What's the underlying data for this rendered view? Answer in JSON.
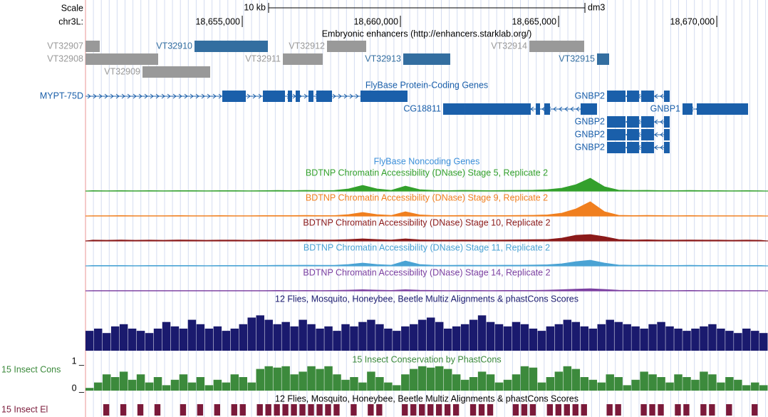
{
  "browser": {
    "scale_label": "Scale",
    "chrom_label": "chr3L:",
    "assembly": "dm3",
    "scale_bar": {
      "label": "10 kb",
      "length": 10000
    },
    "xlim": [
      18650045,
      18671619
    ],
    "xticks": [
      {
        "value": 18655000,
        "label": "18,655,000"
      },
      {
        "value": 18660000,
        "label": "18,660,000"
      },
      {
        "value": 18665000,
        "label": "18,665,000"
      },
      {
        "value": 18670000,
        "label": "18,670,000"
      }
    ]
  },
  "enhancers": {
    "title": "Embryonic enhancers (http://enhancers.starklab.org/)",
    "items": [
      {
        "name": "VT32907",
        "start": 18650045,
        "end": 18650495,
        "color": "#999999"
      },
      {
        "name": "VT32908",
        "start": 18650045,
        "end": 18652342,
        "color": "#999999"
      },
      {
        "name": "VT32909",
        "start": 18651847,
        "end": 18653986,
        "color": "#999999"
      },
      {
        "name": "VT32910",
        "start": 18653491,
        "end": 18655810,
        "color": "#336ea0"
      },
      {
        "name": "VT32911",
        "start": 18656283,
        "end": 18657544,
        "color": "#999999"
      },
      {
        "name": "VT32912",
        "start": 18657679,
        "end": 18658918,
        "color": "#999999"
      },
      {
        "name": "VT32913",
        "start": 18660089,
        "end": 18661575,
        "color": "#336ea0"
      },
      {
        "name": "VT32914",
        "start": 18664075,
        "end": 18665809,
        "color": "#999999"
      },
      {
        "name": "VT32915",
        "start": 18666214,
        "end": 18666597,
        "color": "#336ea0"
      }
    ]
  },
  "genes": {
    "title": "FlyBase Protein-Coding Genes",
    "color": "#1a5faa",
    "items": [
      {
        "name": "MYPT-75D",
        "start": 18650045,
        "end": 18660224,
        "strand": "+",
        "exons": [
          [
            18654369,
            18655112
          ],
          [
            18655652,
            18656351
          ],
          [
            18656441,
            18656576
          ],
          [
            18656688,
            18656824
          ],
          [
            18657094,
            18657251
          ],
          [
            18657341,
            18657837
          ],
          [
            18658738,
            18659323
          ],
          [
            18659323,
            18660224
          ]
        ]
      },
      {
        "name": "CG18811",
        "start": 18661350,
        "end": 18666214,
        "strand": "-",
        "exons": [
          [
            18661350,
            18662026
          ],
          [
            18662026,
            18664120
          ],
          [
            18664278,
            18664413
          ],
          [
            18664548,
            18664728
          ],
          [
            18665696,
            18666214
          ]
        ]
      },
      {
        "name": "GNBP2",
        "start": 18666530,
        "end": 18668511,
        "strand": "-",
        "exons": [
          [
            18666530,
            18667115
          ],
          [
            18667160,
            18667543
          ],
          [
            18667611,
            18668016
          ],
          [
            18668331,
            18668511
          ]
        ]
      },
      {
        "name": "GNBP1",
        "start": 18668917,
        "end": 18670989,
        "strand": "-",
        "exons": [
          [
            18668917,
            18669232
          ],
          [
            18669367,
            18670763
          ],
          [
            18670763,
            18670989
          ]
        ]
      },
      {
        "name": "GNBP2",
        "start": 18666530,
        "end": 18668511,
        "strand": "-",
        "exons": [
          [
            18666530,
            18667115
          ],
          [
            18667160,
            18667543
          ],
          [
            18667611,
            18668016
          ],
          [
            18668331,
            18668511
          ]
        ]
      },
      {
        "name": "GNBP2",
        "start": 18666530,
        "end": 18668511,
        "strand": "-",
        "exons": [
          [
            18666530,
            18667115
          ],
          [
            18667160,
            18667543
          ],
          [
            18667611,
            18668016
          ],
          [
            18668331,
            18668511
          ]
        ]
      },
      {
        "name": "GNBP2",
        "start": 18666530,
        "end": 18668511,
        "strand": "-",
        "exons": [
          [
            18666530,
            18667115
          ],
          [
            18667160,
            18667543
          ],
          [
            18667611,
            18668016
          ],
          [
            18668331,
            18668511
          ]
        ]
      }
    ]
  },
  "noncoding": {
    "title": "FlyBase Noncoding Genes"
  },
  "dnase": {
    "ylim": [
      0,
      10
    ],
    "tracks": [
      {
        "name": "BDTNP Chromatin Accessibility (DNase) Stage 5, Replicate 2",
        "color": "#33a02c",
        "values": [
          0.3,
          0.2,
          0.3,
          0.2,
          0.3,
          0.2,
          0.3,
          0.3,
          0.2,
          0.3,
          0.3,
          0.2,
          0.3,
          0.4,
          0.3,
          0.5,
          0.3,
          0.4,
          1.5,
          4,
          1.5,
          0.5,
          3.5,
          1,
          0.4,
          0.3,
          0.5,
          0.4,
          0.3,
          0.4,
          0.5,
          0.6,
          1,
          2,
          4.5,
          9,
          3,
          0.6,
          0.4,
          0.5,
          0.3,
          0.3,
          0.4,
          0.3,
          0.3,
          0.2,
          0.3,
          0.2
        ]
      },
      {
        "name": "BDTNP Chromatin Accessibility (DNase) Stage 9, Replicate 2",
        "color": "#f07f1f",
        "values": [
          0.2,
          0.2,
          0.3,
          0.2,
          0.2,
          0.2,
          0.3,
          0.2,
          0.2,
          0.3,
          0.2,
          0.2,
          0.3,
          0.3,
          0.3,
          0.4,
          0.3,
          0.3,
          1,
          2.5,
          1,
          0.4,
          3,
          0.8,
          0.3,
          0.3,
          0.4,
          0.3,
          0.3,
          0.3,
          0.4,
          0.5,
          0.8,
          2,
          5,
          10,
          3,
          0.5,
          0.3,
          0.4,
          0.3,
          0.2,
          0.3,
          0.2,
          0.2,
          0.2,
          0.2,
          0.2
        ]
      },
      {
        "name": "BDTNP Chromatin Accessibility (DNase) Stage 10, Replicate 2",
        "color": "#8b1a1a",
        "values": [
          0.6,
          0.5,
          0.7,
          0.5,
          0.6,
          0.5,
          0.7,
          0.6,
          0.5,
          0.6,
          0.6,
          0.5,
          0.7,
          0.6,
          0.6,
          0.8,
          0.6,
          0.7,
          1,
          1.5,
          1,
          0.7,
          1.5,
          0.8,
          0.6,
          0.6,
          0.7,
          0.6,
          0.6,
          0.7,
          0.8,
          0.9,
          1,
          2,
          4,
          4.5,
          3,
          1,
          0.7,
          0.8,
          0.6,
          0.6,
          0.7,
          0.6,
          0.6,
          0.5,
          0.6,
          0.5
        ]
      },
      {
        "name": "BDTNP Chromatin Accessibility (DNase) Stage 11, Replicate 2",
        "color": "#4aa3d4",
        "values": [
          0.3,
          0.3,
          0.3,
          0.2,
          0.3,
          0.3,
          0.3,
          0.3,
          0.2,
          0.3,
          0.3,
          0.3,
          0.3,
          0.4,
          0.4,
          0.5,
          0.4,
          0.4,
          1,
          2,
          1,
          0.5,
          3.5,
          1,
          0.4,
          0.4,
          0.5,
          0.4,
          0.4,
          0.5,
          0.5,
          0.6,
          0.8,
          1.5,
          3,
          4,
          2,
          0.6,
          0.4,
          0.5,
          0.3,
          0.3,
          0.4,
          0.3,
          0.3,
          0.3,
          0.3,
          0.3
        ]
      },
      {
        "name": "BDTNP Chromatin Accessibility (DNase) Stage 14, Replicate 2",
        "color": "#7b3fa0",
        "values": [
          0.2,
          0.2,
          0.2,
          0.2,
          0.2,
          0.2,
          0.2,
          0.2,
          0.2,
          0.2,
          0.2,
          0.2,
          0.2,
          0.3,
          0.2,
          0.3,
          0.2,
          0.3,
          0.5,
          0.8,
          0.5,
          0.3,
          0.8,
          0.4,
          0.3,
          0.2,
          0.3,
          0.3,
          0.2,
          0.3,
          0.3,
          0.3,
          0.5,
          0.8,
          1.2,
          1.5,
          1,
          0.4,
          0.3,
          0.3,
          0.2,
          0.2,
          0.3,
          0.2,
          0.2,
          0.2,
          0.2,
          0.2
        ]
      }
    ]
  },
  "multiz": {
    "title": "12 Flies, Mosquito, Honeybee, Beetle Multiz Alignments & phastCons Scores",
    "color": "#1a1a6e",
    "ylim": [
      0,
      1
    ],
    "values": [
      0.45,
      0.5,
      0.4,
      0.55,
      0.6,
      0.5,
      0.45,
      0.4,
      0.5,
      0.65,
      0.55,
      0.5,
      0.7,
      0.6,
      0.5,
      0.55,
      0.45,
      0.5,
      0.6,
      0.75,
      0.8,
      0.7,
      0.6,
      0.65,
      0.55,
      0.7,
      0.6,
      0.5,
      0.55,
      0.45,
      0.6,
      0.55,
      0.65,
      0.7,
      0.6,
      0.5,
      0.45,
      0.55,
      0.6,
      0.7,
      0.75,
      0.65,
      0.5,
      0.55,
      0.6,
      0.7,
      0.8,
      0.65,
      0.6,
      0.55,
      0.65,
      0.6,
      0.5,
      0.45,
      0.55,
      0.6,
      0.7,
      0.65,
      0.55,
      0.5,
      0.6,
      0.7,
      0.65,
      0.6,
      0.55,
      0.5,
      0.6,
      0.65,
      0.55,
      0.5,
      0.45,
      0.5,
      0.55,
      0.6,
      0.5,
      0.45,
      0.4,
      0.5,
      0.45,
      0.4
    ]
  },
  "phastcons": {
    "label": "15 Insect Cons",
    "title": "15 Insect Conservation by PhastCons",
    "color": "#3c8a3c",
    "ylim": [
      0,
      1
    ],
    "yticks": [
      {
        "value": 1,
        "label": "1 _"
      },
      {
        "value": 0,
        "label": "0 _"
      }
    ],
    "values": [
      0.1,
      0.3,
      0.6,
      0.5,
      0.7,
      0.4,
      0.6,
      0.3,
      0.5,
      0.2,
      0.4,
      0.6,
      0.3,
      0.5,
      0.2,
      0.4,
      0.3,
      0.6,
      0.5,
      0.3,
      0.8,
      0.9,
      0.85,
      0.9,
      0.6,
      0.7,
      0.9,
      0.8,
      0.9,
      0.6,
      0.4,
      0.5,
      0.3,
      0.7,
      0.5,
      0.3,
      0.2,
      0.6,
      0.8,
      0.9,
      0.85,
      0.9,
      0.8,
      0.6,
      0.4,
      0.5,
      0.7,
      0.6,
      0.3,
      0.4,
      0.6,
      0.9,
      0.85,
      0.3,
      0.5,
      0.7,
      0.9,
      0.8,
      0.5,
      0.4,
      0.3,
      0.6,
      0.5,
      0.2,
      0.4,
      0.7,
      0.6,
      0.5,
      0.3,
      0.6,
      0.5,
      0.4,
      0.7,
      0.6,
      0.3,
      0.5,
      0.4,
      0.2,
      0.3,
      0.2
    ]
  },
  "elements": {
    "label": "15 Insect El",
    "title": "12 Flies, Mosquito, Honeybee, Beetle Multiz Alignments & phastCons Scores",
    "color": "#7b1a3a",
    "values": [
      0,
      0,
      1,
      0,
      1,
      0,
      1,
      0,
      1,
      0,
      0,
      1,
      0,
      1,
      0,
      1,
      0,
      1,
      1,
      0,
      1,
      1,
      1,
      1,
      1,
      1,
      1,
      1,
      1,
      1,
      0,
      1,
      0,
      1,
      1,
      0,
      0,
      1,
      1,
      1,
      1,
      1,
      1,
      1,
      0,
      1,
      1,
      1,
      0,
      0,
      1,
      1,
      1,
      0,
      1,
      1,
      1,
      1,
      1,
      0,
      0,
      1,
      1,
      0,
      0,
      1,
      1,
      1,
      0,
      1,
      1,
      0,
      1,
      1,
      0,
      1,
      0,
      0,
      1,
      0
    ]
  }
}
